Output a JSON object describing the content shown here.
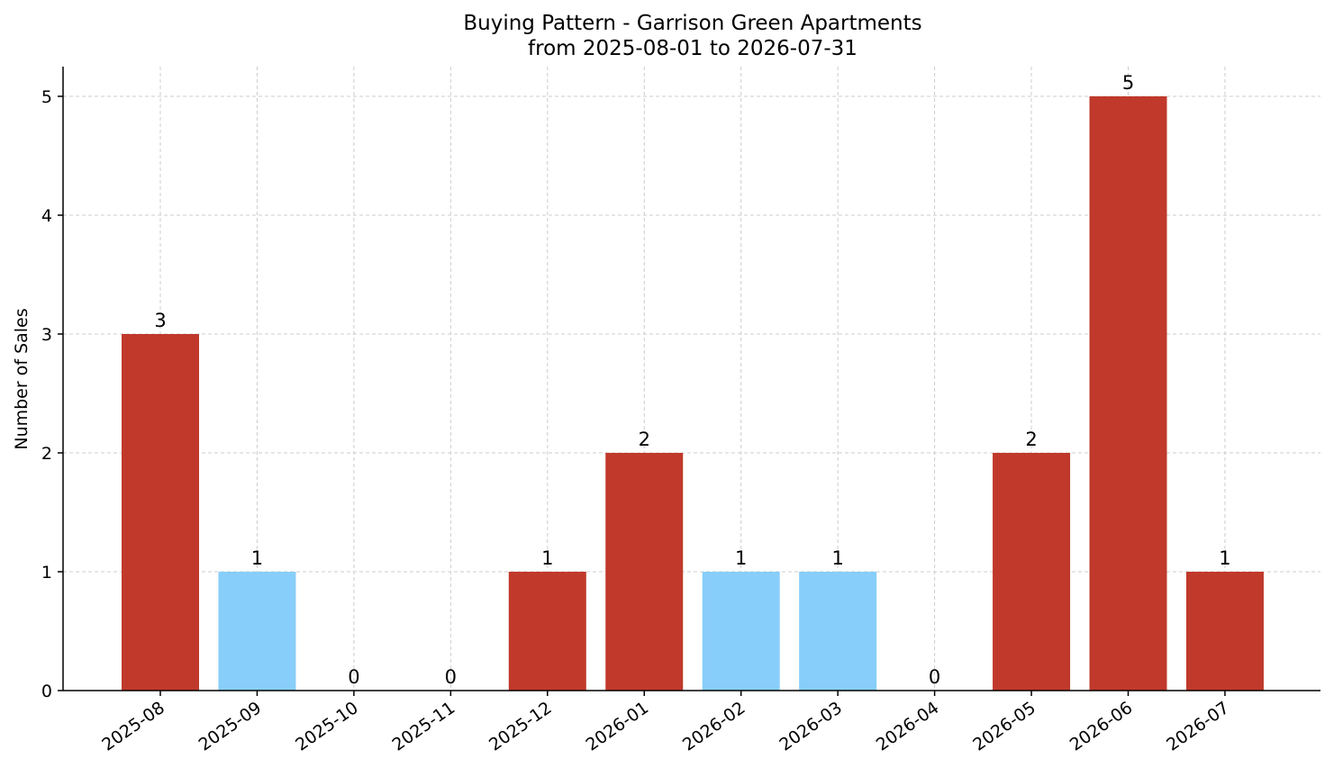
{
  "chart_data": {
    "type": "bar",
    "title": "Buying Pattern - Garrison Green Apartments",
    "subtitle": "from 2025-08-01 to 2026-07-31",
    "xlabel": "",
    "ylabel": "Number of Sales",
    "categories": [
      "2025-08",
      "2025-09",
      "2025-10",
      "2025-11",
      "2025-12",
      "2026-01",
      "2026-02",
      "2026-03",
      "2026-04",
      "2026-05",
      "2026-06",
      "2026-07"
    ],
    "values": [
      3,
      1,
      0,
      0,
      1,
      2,
      1,
      1,
      0,
      2,
      5,
      1
    ],
    "bar_colors": [
      "#c0392b",
      "#87cefa",
      "#c0392b",
      "#c0392b",
      "#c0392b",
      "#c0392b",
      "#87cefa",
      "#87cefa",
      "#c0392b",
      "#c0392b",
      "#c0392b",
      "#c0392b"
    ],
    "ylim": [
      0,
      5.25
    ],
    "yticks": [
      0,
      1,
      2,
      3,
      4,
      5
    ],
    "grid": true,
    "legend": "none"
  }
}
